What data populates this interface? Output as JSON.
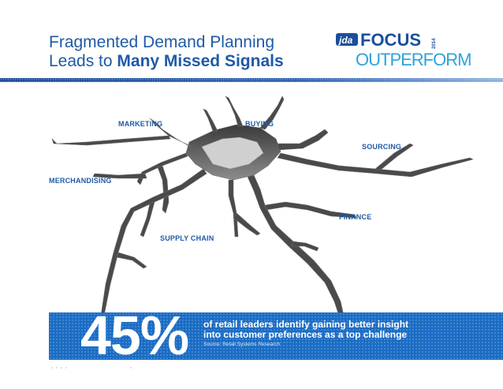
{
  "title": {
    "line1": "Fragmented Demand Planning",
    "line2_prefix": "Leads to ",
    "line2_bold": "Many Missed Signals"
  },
  "logo": {
    "brand": "jda",
    "focus": "FOCUS",
    "year": "2014",
    "tagline": "OUTPERFORM"
  },
  "labels": {
    "marketing": "MARKETING",
    "buying": "BUYING",
    "sourcing": "SOURCING",
    "merchandising": "MERCHANDISING",
    "finance": "FINANCE",
    "supply_chain": "SUPPLY CHAIN"
  },
  "stat": {
    "value": "45%",
    "line1": "of retail leaders identify gaining better insight",
    "line2": "into customer preferences as a top challenge",
    "source": "Source: Retail Systems Research"
  },
  "colors": {
    "title_blue": "#1f5aa6",
    "banner_blue": "#1a6cc4",
    "logo_blue": "#1b4f9c",
    "logo_cyan": "#2fa3d9"
  }
}
